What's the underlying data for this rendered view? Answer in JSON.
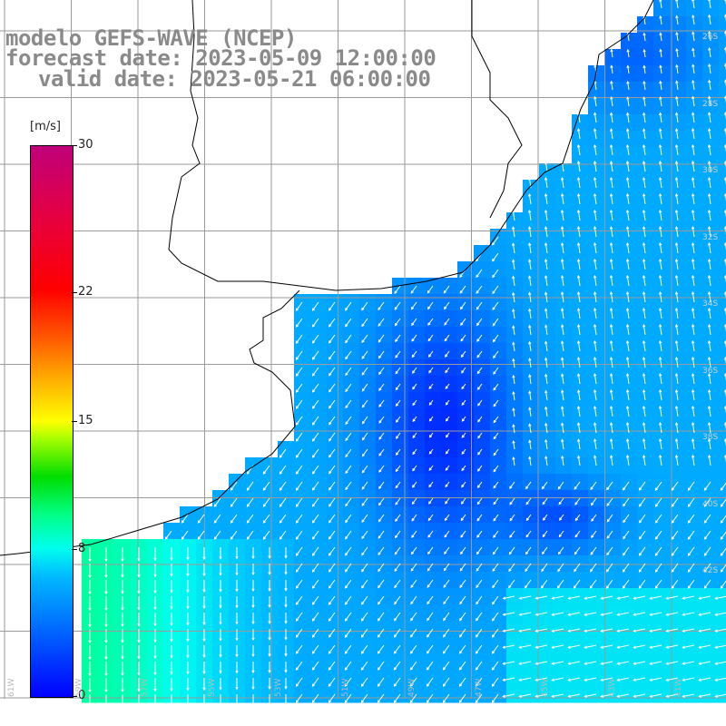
{
  "title": {
    "line1": "modelo GEFS-WAVE (NCEP)",
    "line2": "forecast date: 2023-05-09 12:00:00",
    "line3": "valid date: 2023-05-21 06:00:00"
  },
  "colorbar": {
    "unit": "[m/s]",
    "ticks": [
      "30",
      "22",
      "15",
      "8",
      "0"
    ],
    "tick_values": [
      30,
      22,
      15,
      8,
      0
    ],
    "range": [
      0,
      30
    ],
    "colors": [
      "#0000ff",
      "#0066ff",
      "#00bbff",
      "#00ffee",
      "#00ff88",
      "#00dd00",
      "#aaff00",
      "#ffff00",
      "#ffaa00",
      "#ff5a00",
      "#ff0000",
      "#e8003c",
      "#c0007a"
    ]
  },
  "map": {
    "land_color": "#ffffff",
    "coast_color": "#000000",
    "grid_color": "#9a9a9a",
    "arrow_color": "#ffffff",
    "lon_labels": [
      "61W",
      "59W",
      "57W",
      "55W",
      "53W",
      "51W",
      "49W",
      "47W",
      "45W",
      "43W",
      "41W"
    ],
    "lat_labels": [
      "26S",
      "28S",
      "30S",
      "32S",
      "34S",
      "36S",
      "38S",
      "40S",
      "42S"
    ]
  }
}
